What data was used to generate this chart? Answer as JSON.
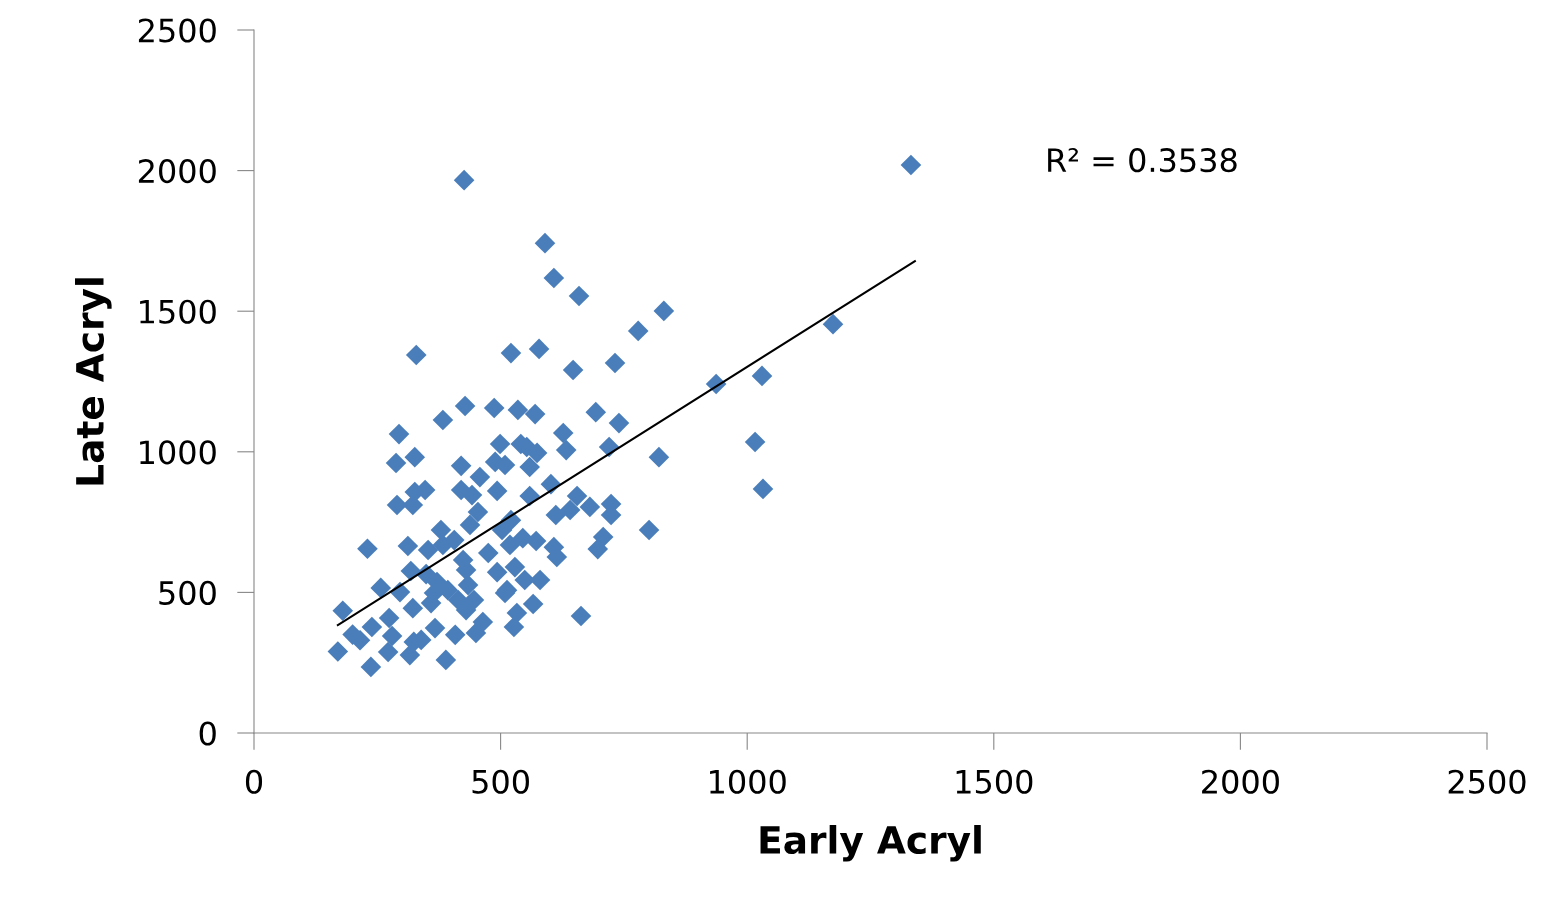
{
  "chart_data": {
    "type": "scatter",
    "xlabel": "Early Acryl",
    "ylabel": "Late Acryl",
    "xlim": [
      0,
      2500
    ],
    "ylim": [
      0,
      2500
    ],
    "xticks": [
      0,
      500,
      1000,
      1500,
      2000,
      2500
    ],
    "yticks": [
      0,
      500,
      1000,
      1500,
      2000,
      2500
    ],
    "grid": false,
    "annotations": [
      "R² = 0.3538"
    ],
    "series": [
      {
        "color": "#4a7ebb",
        "marker": "diamond",
        "x": [
          170,
          180,
          200,
          215,
          230,
          237,
          239,
          257,
          274,
          272,
          280,
          288,
          294,
          290,
          296,
          312,
          316,
          318,
          322,
          326,
          329,
          326,
          322,
          324,
          339,
          347,
          349,
          353,
          359,
          365,
          367,
          371,
          379,
          383,
          383,
          389,
          393,
          406,
          408,
          414,
          420,
          420,
          424,
          428,
          426,
          430,
          434,
          438,
          442,
          430,
          446,
          450,
          454,
          458,
          464,
          475,
          487,
          489,
          493,
          493,
          499,
          503,
          509,
          509,
          513,
          519,
          521,
          521,
          527,
          529,
          535,
          533,
          541,
          545,
          549,
          553,
          559,
          559,
          566,
          570,
          572,
          574,
          578,
          580,
          590,
          602,
          608,
          608,
          612,
          614,
          627,
          633,
          641,
          647,
          655,
          659,
          663,
          681,
          697,
          693,
          708,
          720,
          724,
          724,
          732,
          740,
          779,
          801,
          821,
          831,
          937,
          1016,
          1030,
          1032,
          1174,
          1332
        ],
        "values": [
          290,
          435,
          350,
          330,
          655,
          235,
          377,
          516,
          409,
          288,
          345,
          960,
          1063,
          811,
          501,
          665,
          277,
          576,
          811,
          981,
          1344,
          857,
          444,
          324,
          331,
          864,
          565,
          651,
          462,
          498,
          373,
          537,
          722,
          1113,
          669,
          260,
          508,
          686,
          349,
          473,
          950,
          864,
          615,
          1163,
          1966,
          437,
          526,
          740,
          846,
          580,
          473,
          356,
          786,
          910,
          395,
          640,
          1156,
          964,
          861,
          572,
          1028,
          722,
          953,
          498,
          508,
          669,
          1351,
          757,
          377,
          590,
          1149,
          427,
          1028,
          693,
          544,
          1017,
          946,
          843,
          459,
          1134,
          683,
          996,
          1366,
          544,
          1742,
          885,
          661,
          1618,
          775,
          626,
          1067,
          1006,
          793,
          1291,
          843,
          1554,
          416,
          804,
          654,
          1141,
          697,
          1017,
          814,
          775,
          1316,
          1102,
          1430,
          722,
          981,
          1501,
          1241,
          1035,
          1270,
          868,
          1454,
          2020
        ]
      },
      {
        "type": "line",
        "color": "#000000",
        "marker": "none",
        "line_style": "solid",
        "x": [
          170,
          1340
        ],
        "values": [
          384,
          1678
        ]
      }
    ]
  }
}
